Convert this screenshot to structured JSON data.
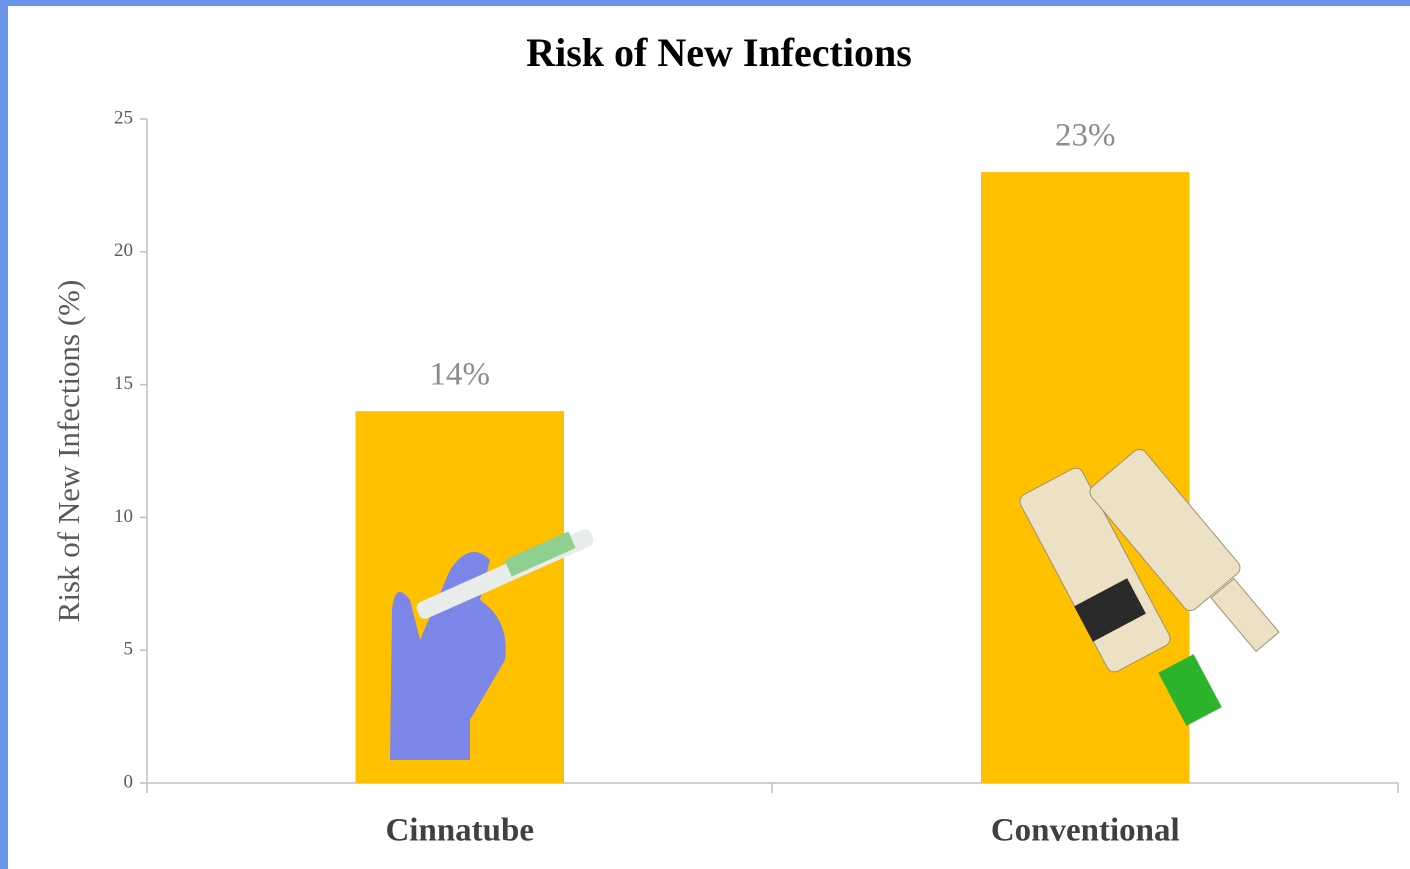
{
  "chart_data": {
    "type": "bar",
    "title": "Risk of New Infections",
    "y_label": "Risk of New Infections (%)",
    "categories": [
      "Cinnatube",
      "Conventional"
    ],
    "values": [
      14,
      23
    ],
    "value_labels": [
      "14%",
      "23%"
    ],
    "color": "#ffc000",
    "ylim": [
      0,
      25
    ],
    "yticks": [
      0,
      5,
      10,
      15,
      20,
      25
    ]
  }
}
